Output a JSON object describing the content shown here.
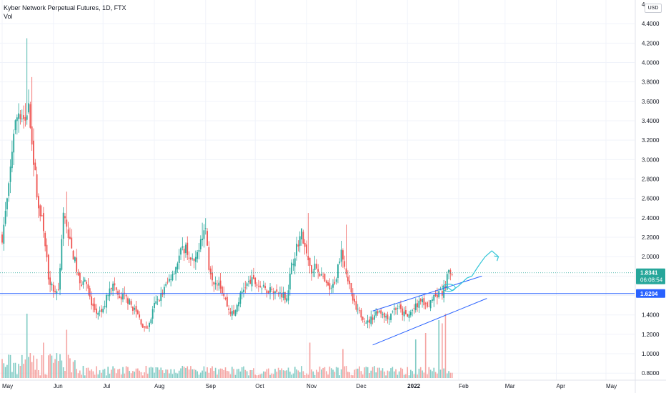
{
  "legend": {
    "title": "Kyber Network Perpetual Futures, 1D, FTX",
    "volume_label": "Vol"
  },
  "currency_button": "USD",
  "colors": {
    "up": "#26a69a",
    "down": "#ef5350",
    "up_volume": "#80cbc4",
    "down_volume": "#f5a3a1",
    "support_line": "#2962ff",
    "channel": "#2962ff",
    "projection": "#2ec4d6",
    "current_price_tag": "#26a69a",
    "support_tag": "#2962ff"
  },
  "chart_data": {
    "type": "candlestick",
    "symbol": "Kyber Network Perpetual Futures",
    "interval": "1D",
    "exchange": "FTX",
    "ylim": [
      0.75,
      4.6
    ],
    "y_ticks": [
      "4.4000",
      "4.2000",
      "4.0000",
      "3.8000",
      "3.6000",
      "3.4000",
      "3.2000",
      "3.0000",
      "2.8000",
      "2.6000",
      "2.4000",
      "2.2000",
      "2.0000",
      "1.8000",
      "1.6000",
      "1.4000",
      "1.2000",
      "1.0000",
      "0.8000"
    ],
    "y_tick_values": [
      4.4,
      4.2,
      4.0,
      3.8,
      3.6,
      3.4,
      3.2,
      3.0,
      2.8,
      2.6,
      2.4,
      2.2,
      2.0,
      1.8,
      1.6,
      1.4,
      1.2,
      1.0,
      0.8
    ],
    "top_tick_partial": "4.",
    "x_ticks": [
      {
        "label": "May",
        "day": 0
      },
      {
        "label": "Jun",
        "day": 31
      },
      {
        "label": "Jul",
        "day": 61
      },
      {
        "label": "Aug",
        "day": 92
      },
      {
        "label": "Sep",
        "day": 123
      },
      {
        "label": "Oct",
        "day": 153
      },
      {
        "label": "Nov",
        "day": 184
      },
      {
        "label": "Dec",
        "day": 214
      },
      {
        "label": "2022",
        "day": 245,
        "bold": true
      },
      {
        "label": "Feb",
        "day": 276
      },
      {
        "label": "Mar",
        "day": 304
      },
      {
        "label": "Apr",
        "day": 335
      },
      {
        "label": "May",
        "day": 365
      }
    ],
    "last_day": 272,
    "current_price": {
      "value": 1.8341,
      "label": "1.8341",
      "countdown": "06:08:54"
    },
    "support_level": {
      "value": 1.6204,
      "label": "1.6204"
    },
    "anchors": [
      [
        0,
        2.2
      ],
      [
        4,
        2.7
      ],
      [
        7,
        3.3
      ],
      [
        10,
        3.5
      ],
      [
        14,
        3.4
      ],
      [
        16,
        3.6
      ],
      [
        19,
        3.0
      ],
      [
        22,
        2.5
      ],
      [
        25,
        2.3
      ],
      [
        28,
        1.8
      ],
      [
        31,
        1.65
      ],
      [
        34,
        1.65
      ],
      [
        37,
        2.45
      ],
      [
        40,
        2.2
      ],
      [
        44,
        1.95
      ],
      [
        47,
        1.7
      ],
      [
        50,
        1.8
      ],
      [
        54,
        1.5
      ],
      [
        58,
        1.4
      ],
      [
        61,
        1.45
      ],
      [
        65,
        1.7
      ],
      [
        68,
        1.7
      ],
      [
        71,
        1.55
      ],
      [
        74,
        1.6
      ],
      [
        78,
        1.5
      ],
      [
        82,
        1.4
      ],
      [
        86,
        1.25
      ],
      [
        89,
        1.3
      ],
      [
        92,
        1.5
      ],
      [
        96,
        1.6
      ],
      [
        99,
        1.7
      ],
      [
        102,
        1.8
      ],
      [
        105,
        1.9
      ],
      [
        108,
        2.05
      ],
      [
        111,
        2.1
      ],
      [
        114,
        1.95
      ],
      [
        117,
        1.95
      ],
      [
        120,
        2.2
      ],
      [
        123,
        2.3
      ],
      [
        125,
        1.9
      ],
      [
        128,
        1.75
      ],
      [
        131,
        1.75
      ],
      [
        134,
        1.6
      ],
      [
        137,
        1.45
      ],
      [
        140,
        1.4
      ],
      [
        144,
        1.6
      ],
      [
        147,
        1.7
      ],
      [
        151,
        1.75
      ],
      [
        154,
        1.72
      ],
      [
        157,
        1.68
      ],
      [
        160,
        1.65
      ],
      [
        163,
        1.68
      ],
      [
        166,
        1.62
      ],
      [
        169,
        1.62
      ],
      [
        172,
        1.58
      ],
      [
        175,
        1.9
      ],
      [
        178,
        2.1
      ],
      [
        181,
        2.25
      ],
      [
        184,
        2.0
      ],
      [
        187,
        1.85
      ],
      [
        190,
        1.9
      ],
      [
        193,
        1.8
      ],
      [
        196,
        1.7
      ],
      [
        199,
        1.65
      ],
      [
        202,
        1.8
      ],
      [
        205,
        2.1
      ],
      [
        208,
        1.85
      ],
      [
        211,
        1.6
      ],
      [
        214,
        1.45
      ],
      [
        218,
        1.38
      ],
      [
        221,
        1.32
      ],
      [
        224,
        1.38
      ],
      [
        227,
        1.45
      ],
      [
        230,
        1.42
      ],
      [
        233,
        1.36
      ],
      [
        236,
        1.45
      ],
      [
        239,
        1.48
      ],
      [
        242,
        1.42
      ],
      [
        245,
        1.38
      ],
      [
        248,
        1.45
      ],
      [
        251,
        1.5
      ],
      [
        254,
        1.55
      ],
      [
        257,
        1.45
      ],
      [
        260,
        1.6
      ],
      [
        262,
        1.58
      ],
      [
        264,
        1.65
      ],
      [
        266,
        1.62
      ],
      [
        268,
        1.72
      ],
      [
        270,
        1.85
      ],
      [
        272,
        1.83
      ]
    ],
    "spikes": [
      {
        "day": 15,
        "high": 4.25
      },
      {
        "day": 18,
        "high": 3.85
      },
      {
        "day": 39,
        "high": 2.67
      },
      {
        "day": 121,
        "high": 2.35
      },
      {
        "day": 185,
        "high": 2.45
      },
      {
        "day": 208,
        "high": 2.33
      },
      {
        "day": 271,
        "high": 1.88
      }
    ],
    "volume_spikes": [
      {
        "day": 15,
        "v": 1.0
      },
      {
        "day": 25,
        "v": 0.55
      },
      {
        "day": 39,
        "v": 0.75
      },
      {
        "day": 186,
        "v": 0.55
      },
      {
        "day": 206,
        "v": 0.45
      },
      {
        "day": 250,
        "v": 0.6
      },
      {
        "day": 256,
        "v": 0.7
      },
      {
        "day": 264,
        "v": 0.9
      },
      {
        "day": 266,
        "v": 0.85
      },
      {
        "day": 268,
        "v": 1.0
      }
    ],
    "annotations": {
      "channel_upper": [
        [
          224,
          1.44
        ],
        [
          290,
          1.8
        ]
      ],
      "channel_lower": [
        [
          224,
          1.09
        ],
        [
          293,
          1.57
        ]
      ],
      "projection_path": [
        [
          268,
          1.7
        ],
        [
          272,
          1.65
        ],
        [
          276,
          1.7
        ],
        [
          281,
          1.78
        ],
        [
          284,
          1.8
        ],
        [
          287,
          1.88
        ],
        [
          289,
          1.93
        ],
        [
          292,
          2.0
        ],
        [
          296,
          2.06
        ],
        [
          300,
          2.0
        ]
      ]
    }
  }
}
